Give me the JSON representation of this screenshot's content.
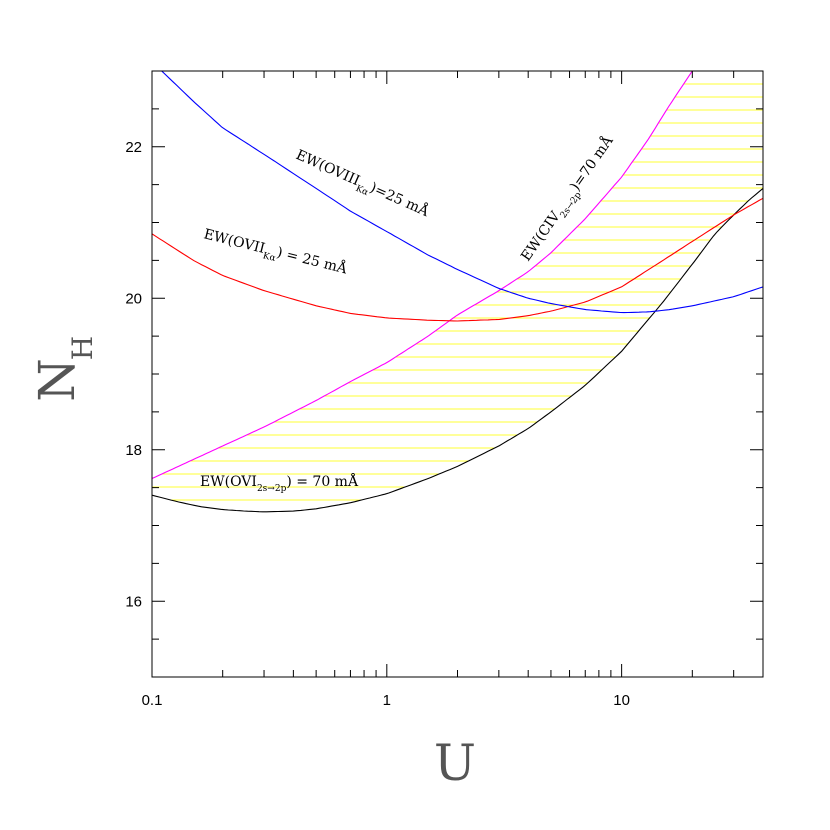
{
  "chart_data": {
    "type": "line",
    "xlabel": "U",
    "ylabel": "N",
    "ylabel_sub": "H",
    "x_scale": "log",
    "xlim": [
      0.1,
      40
    ],
    "ylim": [
      15,
      23
    ],
    "x_ticks": [
      {
        "value": 0.1,
        "label": "0.1"
      },
      {
        "value": 1,
        "label": "1"
      },
      {
        "value": 10,
        "label": "10"
      }
    ],
    "y_ticks": [
      {
        "value": 16,
        "label": "16"
      },
      {
        "value": 18,
        "label": "18"
      },
      {
        "value": 20,
        "label": "20"
      },
      {
        "value": 22,
        "label": "22"
      }
    ],
    "grid": false,
    "shaded_region": {
      "color": "#ffff00",
      "description_bounds": [
        "OVI curve (lower)",
        "CIV curve (upper)"
      ]
    },
    "series": [
      {
        "id": "ovi",
        "color": "#000000",
        "x": [
          0.1,
          0.13,
          0.16,
          0.2,
          0.25,
          0.3,
          0.4,
          0.5,
          0.7,
          1.0,
          1.5,
          2.0,
          3.0,
          4.0,
          5.0,
          7.0,
          10.0,
          15.0,
          20.0,
          25.0,
          30.0,
          35.0,
          40.0
        ],
        "y": [
          17.4,
          17.31,
          17.25,
          17.21,
          17.19,
          17.18,
          17.19,
          17.22,
          17.3,
          17.42,
          17.62,
          17.78,
          18.05,
          18.28,
          18.5,
          18.85,
          19.3,
          19.95,
          20.45,
          20.85,
          21.1,
          21.3,
          21.45
        ]
      },
      {
        "id": "civ",
        "color": "#ff00ff",
        "x": [
          0.1,
          0.2,
          0.3,
          0.5,
          0.7,
          1.0,
          1.5,
          2.0,
          3.0,
          4.0,
          5.0,
          7.0,
          10.0,
          13.0,
          16.0,
          20.0
        ],
        "y": [
          17.62,
          18.05,
          18.3,
          18.65,
          18.9,
          19.15,
          19.5,
          19.78,
          20.1,
          20.35,
          20.6,
          21.05,
          21.6,
          22.1,
          22.55,
          23.0
        ]
      },
      {
        "id": "ovii",
        "color": "#ff0000",
        "x": [
          0.1,
          0.15,
          0.2,
          0.3,
          0.5,
          0.7,
          1.0,
          1.5,
          2.0,
          3.0,
          4.0,
          5.0,
          7.0,
          10.0,
          15.0,
          20.0,
          30.0,
          40.0
        ],
        "y": [
          20.85,
          20.5,
          20.3,
          20.1,
          19.9,
          19.8,
          19.74,
          19.71,
          19.7,
          19.72,
          19.77,
          19.83,
          19.95,
          20.15,
          20.5,
          20.75,
          21.1,
          21.32
        ]
      },
      {
        "id": "oviii",
        "color": "#0000ff",
        "x": [
          0.11,
          0.15,
          0.2,
          0.3,
          0.5,
          0.7,
          1.0,
          1.5,
          2.0,
          3.0,
          4.0,
          5.0,
          7.0,
          10.0,
          13.0,
          16.0,
          20.0,
          30.0,
          40.0
        ],
        "y": [
          23.0,
          22.6,
          22.25,
          21.9,
          21.45,
          21.15,
          20.88,
          20.57,
          20.38,
          20.13,
          20.0,
          19.93,
          19.85,
          19.81,
          19.82,
          19.85,
          19.9,
          20.02,
          20.15
        ]
      }
    ],
    "annotations": [
      {
        "id": "oviii-label",
        "main": "EW(OVIII",
        "sub": "Kα",
        "rest": ")=25 mÅ"
      },
      {
        "id": "ovii-label",
        "main": "EW(OVII",
        "sub": "Kα",
        "rest": ") = 25 mÅ"
      },
      {
        "id": "civ-label",
        "main": "EW(CIV",
        "sub": "2s→2p",
        "rest": ")=70 mÅ"
      },
      {
        "id": "ovi-label",
        "main": "EW(OVI",
        "sub": "2s→2p",
        "rest": ") = 70 mÅ"
      }
    ]
  }
}
